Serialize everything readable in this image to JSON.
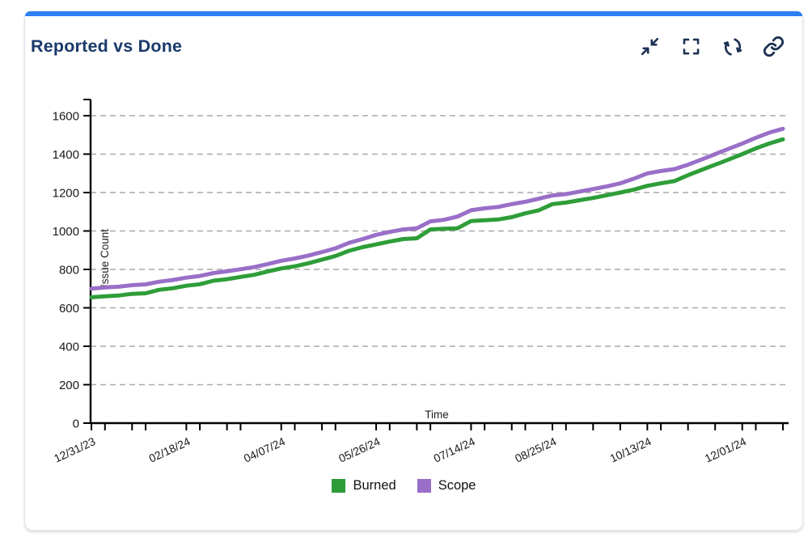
{
  "header": {
    "title": "Reported vs Done"
  },
  "toolbar": {
    "buttons": [
      {
        "icon": "minimize-icon"
      },
      {
        "icon": "fullscreen-icon"
      },
      {
        "icon": "refresh-icon"
      },
      {
        "icon": "link-icon"
      }
    ]
  },
  "colors": {
    "accent_bar": "#2e7ff2",
    "title_text": "#1a3a6b",
    "icon": "#1d3254",
    "burned": "#2e9d39",
    "scope": "#996fc8"
  },
  "chart_data": {
    "type": "line",
    "title": "Reported vs Done",
    "xlabel": "Time",
    "ylabel": "Issue Count",
    "ylim": [
      0,
      1600
    ],
    "y_tick_step": 200,
    "grid": "horizontal-dashed",
    "legend_position": "bottom",
    "x_tick_labels": [
      {
        "index": 0,
        "label": "12/31/23"
      },
      {
        "index": 7,
        "label": "02/18/24"
      },
      {
        "index": 14,
        "label": "04/07/24"
      },
      {
        "index": 21,
        "label": "05/26/24"
      },
      {
        "index": 28,
        "label": "07/14/24"
      },
      {
        "index": 34,
        "label": "08/25/24"
      },
      {
        "index": 41,
        "label": "10/13/24"
      },
      {
        "index": 48,
        "label": "12/01/24"
      }
    ],
    "x_minor_tick_indices": [
      1,
      3,
      4,
      8,
      10,
      11,
      15,
      17,
      18,
      22,
      24,
      25,
      29,
      31,
      32,
      35,
      37,
      39,
      42,
      44,
      46,
      49,
      51
    ],
    "series": [
      {
        "name": "Burned",
        "color": "#2e9d39",
        "values": [
          655,
          660,
          664,
          673,
          676,
          694,
          702,
          715,
          723,
          741,
          749,
          761,
          772,
          789,
          805,
          816,
          832,
          851,
          870,
          897,
          916,
          930,
          945,
          958,
          962,
          1008,
          1012,
          1014,
          1052,
          1056,
          1060,
          1072,
          1092,
          1108,
          1140,
          1148,
          1160,
          1172,
          1186,
          1200,
          1215,
          1235,
          1248,
          1260,
          1290,
          1318,
          1345,
          1372,
          1400,
          1430,
          1455,
          1477
        ]
      },
      {
        "name": "Scope",
        "color": "#996fc8",
        "values": [
          700,
          706,
          710,
          718,
          722,
          736,
          745,
          757,
          766,
          781,
          790,
          801,
          812,
          828,
          845,
          857,
          872,
          890,
          910,
          938,
          958,
          980,
          995,
          1008,
          1014,
          1050,
          1058,
          1075,
          1108,
          1118,
          1125,
          1140,
          1152,
          1168,
          1185,
          1192,
          1205,
          1218,
          1232,
          1248,
          1272,
          1300,
          1312,
          1322,
          1345,
          1372,
          1400,
          1428,
          1455,
          1485,
          1512,
          1532
        ]
      }
    ]
  }
}
